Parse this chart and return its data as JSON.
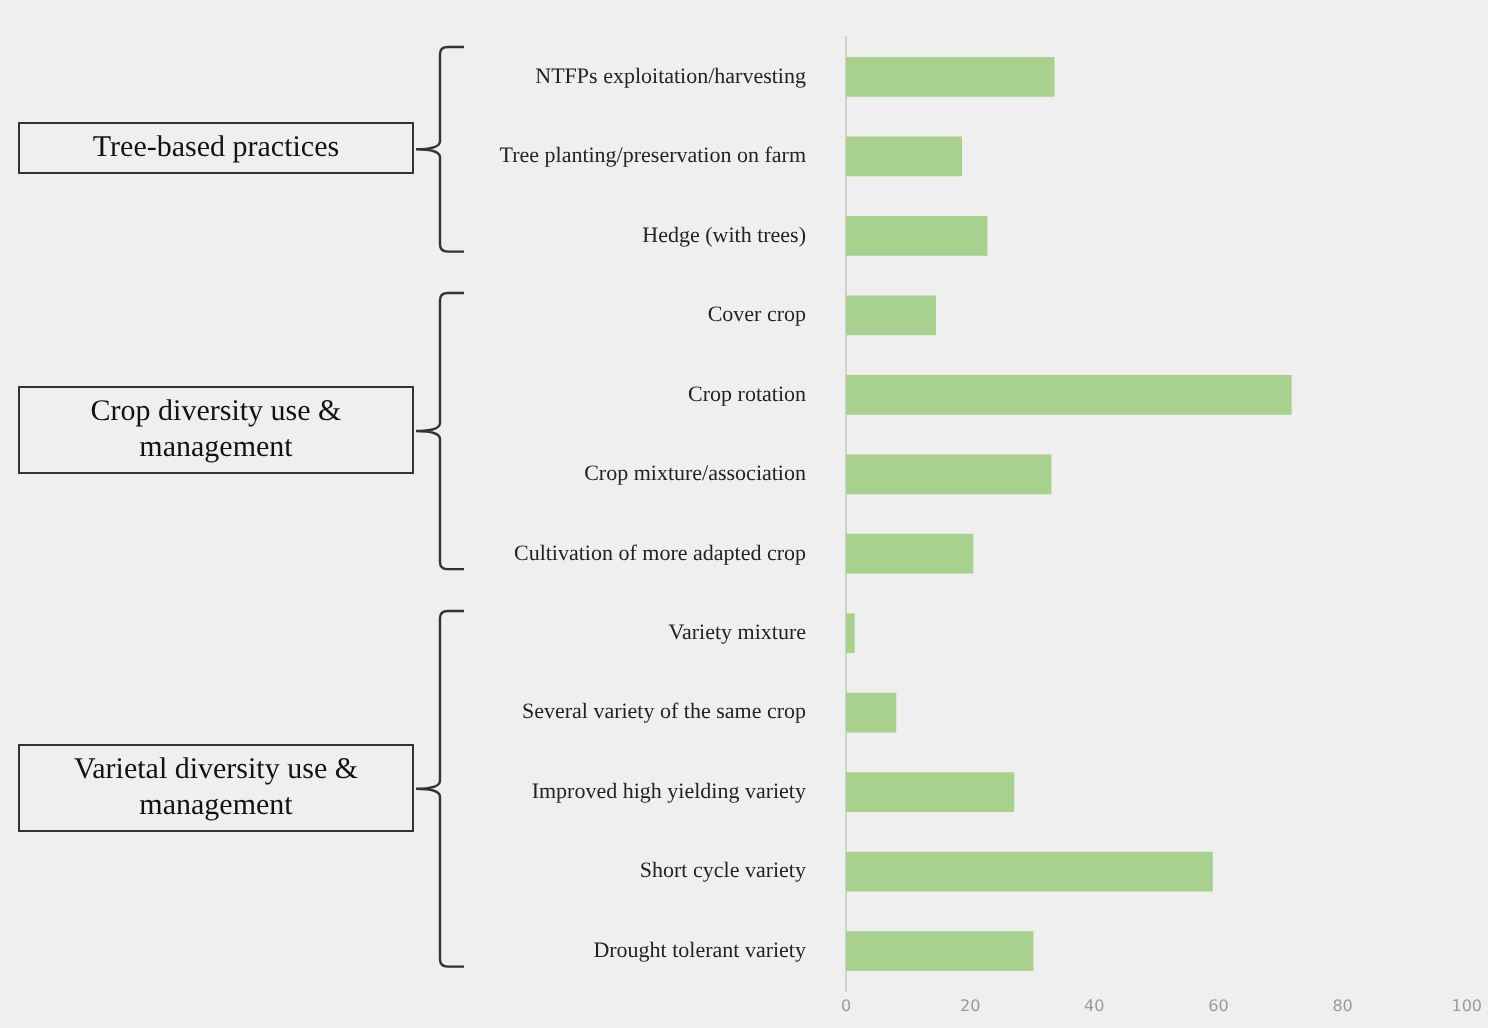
{
  "chart_data": {
    "type": "bar",
    "orientation": "horizontal",
    "categories": [
      "NTFPs exploitation/harvesting",
      "Tree planting/preservation on farm",
      "Hedge (with trees)",
      "Cover crop",
      "Crop rotation",
      "Crop mixture/association",
      "Cultivation of more adapted crop",
      "Variety mixture",
      "Several variety of the same crop",
      "Improved high yielding variety",
      "Short cycle variety",
      "Drought tolerant variety"
    ],
    "values": [
      33.6,
      18.7,
      22.8,
      14.5,
      71.8,
      33.1,
      20.5,
      1.4,
      8.1,
      27.1,
      59.1,
      30.2
    ],
    "color": "#a9d18e",
    "xlim": [
      0,
      100
    ],
    "xticks": [
      0,
      20,
      40,
      60,
      80,
      100
    ],
    "annotations": [
      "Tree-based practices",
      "Crop diversity use & management",
      "Varietal diversity use & management"
    ]
  }
}
